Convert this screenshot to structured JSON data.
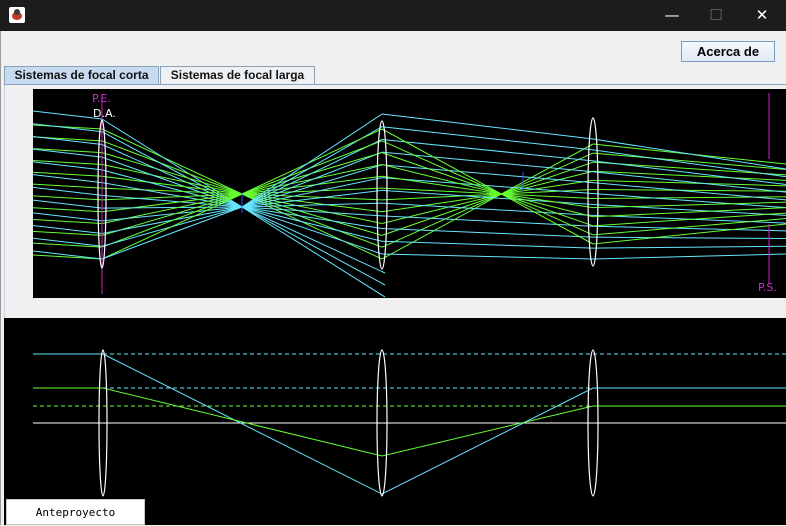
{
  "window": {
    "title": "",
    "controls": {
      "minimize": "—",
      "maximize": "☐",
      "close": "✕"
    }
  },
  "toolbar": {
    "about_label": "Acerca de"
  },
  "tabs": [
    {
      "label": "Sistemas de focal corta",
      "selected": true
    },
    {
      "label": "Sistemas de focal larga",
      "selected": false
    }
  ],
  "diagram_top": {
    "labels": {
      "entrance_pupil": "P.E.",
      "aperture_stop": "D.A.",
      "exit_pupil": "P.S."
    },
    "colors": {
      "marginal": "#33ffcc",
      "chief": "#66e7ff",
      "secondary": "#66ff33",
      "pupil": "#cc22cc",
      "lens": "#ffffff"
    }
  },
  "diagram_bottom": {
    "colors": {
      "axis": "#ffffff",
      "ray_a": "#66e7ff",
      "ray_b": "#66ff33"
    }
  },
  "footer": {
    "draft_button_label": "Anteproyecto"
  }
}
